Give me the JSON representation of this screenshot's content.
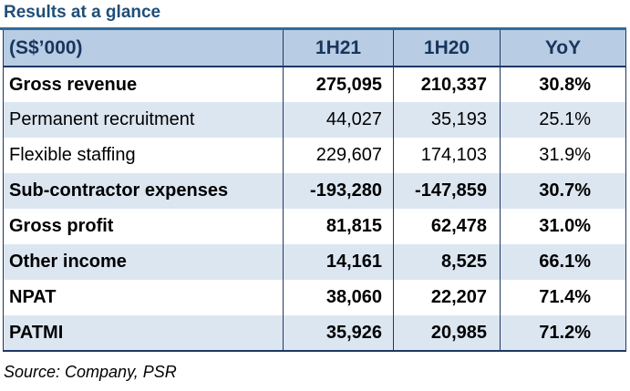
{
  "title": "Results at a glance",
  "header": {
    "label": "(S$’000)",
    "col1": "1H21",
    "col2": "1H20",
    "col3": "YoY"
  },
  "rows": [
    {
      "label": "Gross revenue",
      "h21": "275,095",
      "h20": "210,337",
      "yoy": "30.8%",
      "bold": true,
      "shaded": false
    },
    {
      "label": "Permanent recruitment",
      "h21": "44,027",
      "h20": "35,193",
      "yoy": "25.1%",
      "bold": false,
      "shaded": true
    },
    {
      "label": "Flexible staffing",
      "h21": "229,607",
      "h20": "174,103",
      "yoy": "31.9%",
      "bold": false,
      "shaded": false
    },
    {
      "label": "Sub-contractor expenses",
      "h21": "-193,280",
      "h20": "-147,859",
      "yoy": "30.7%",
      "bold": true,
      "shaded": true
    },
    {
      "label": "Gross profit",
      "h21": "81,815",
      "h20": "62,478",
      "yoy": "31.0%",
      "bold": true,
      "shaded": false
    },
    {
      "label": "Other income",
      "h21": "14,161",
      "h20": "8,525",
      "yoy": "66.1%",
      "bold": true,
      "shaded": true
    },
    {
      "label": "NPAT",
      "h21": "38,060",
      "h20": "22,207",
      "yoy": "71.4%",
      "bold": true,
      "shaded": false
    },
    {
      "label": "PATMI",
      "h21": "35,926",
      "h20": "20,985",
      "yoy": "71.2%",
      "bold": true,
      "shaded": true
    }
  ],
  "source": "Source: Company, PSR",
  "colors": {
    "title": "#1f4e79",
    "header_bg": "#b8cce4",
    "shaded_bg": "#dce6f1",
    "border": "#1f3864"
  }
}
